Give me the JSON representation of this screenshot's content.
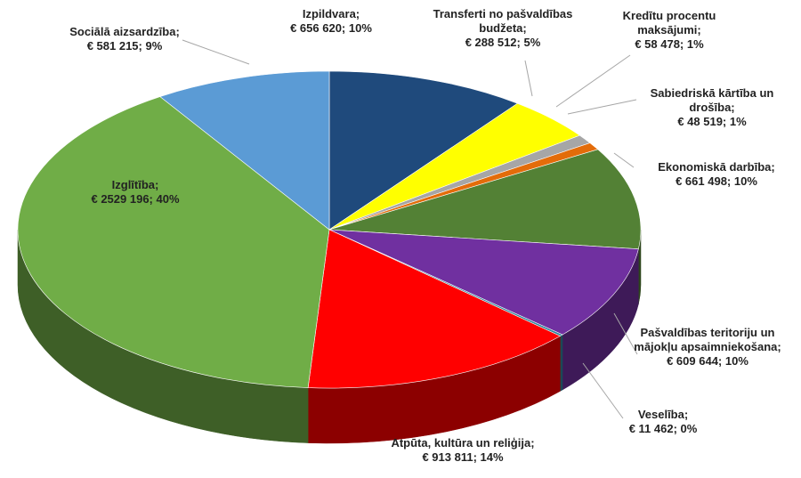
{
  "chart_data": {
    "type": "pie3d",
    "categories": [
      "Izpildvara;",
      "Transferti no pašvaldības budžeta;",
      "Kredītu procentu maksājumi;",
      "Sabiedriskā kārtība un drošība;",
      "Ekonomiskā darbība;",
      "Pašvaldības teritoriju un mājokļu apsaimniekošana;",
      "Veselība;",
      "Atpūta, kultūra un reliģija;",
      "Izglītība;",
      "Sociālā aizsardzība;"
    ],
    "values": [
      656620,
      288512,
      58478,
      48519,
      661498,
      609644,
      11462,
      913811,
      2529196,
      581215
    ],
    "value_labels": [
      "€ 656 620; 10%",
      "€ 288 512; 5%",
      "€ 58 478; 1%",
      "€ 48 519; 1%",
      "€ 661 498; 10%",
      "€ 609 644; 10%",
      "€ 11 462; 0%",
      "€ 913 811; 14%",
      "€ 2529 196; 40%",
      "€ 581 215; 9%"
    ],
    "colors": [
      "#1f4a7c",
      "#ffff00",
      "#a6a6a6",
      "#e36c0a",
      "#538135",
      "#7030a0",
      "#31859c",
      "#ff0000",
      "#70ad47",
      "#5b9bd5"
    ]
  }
}
